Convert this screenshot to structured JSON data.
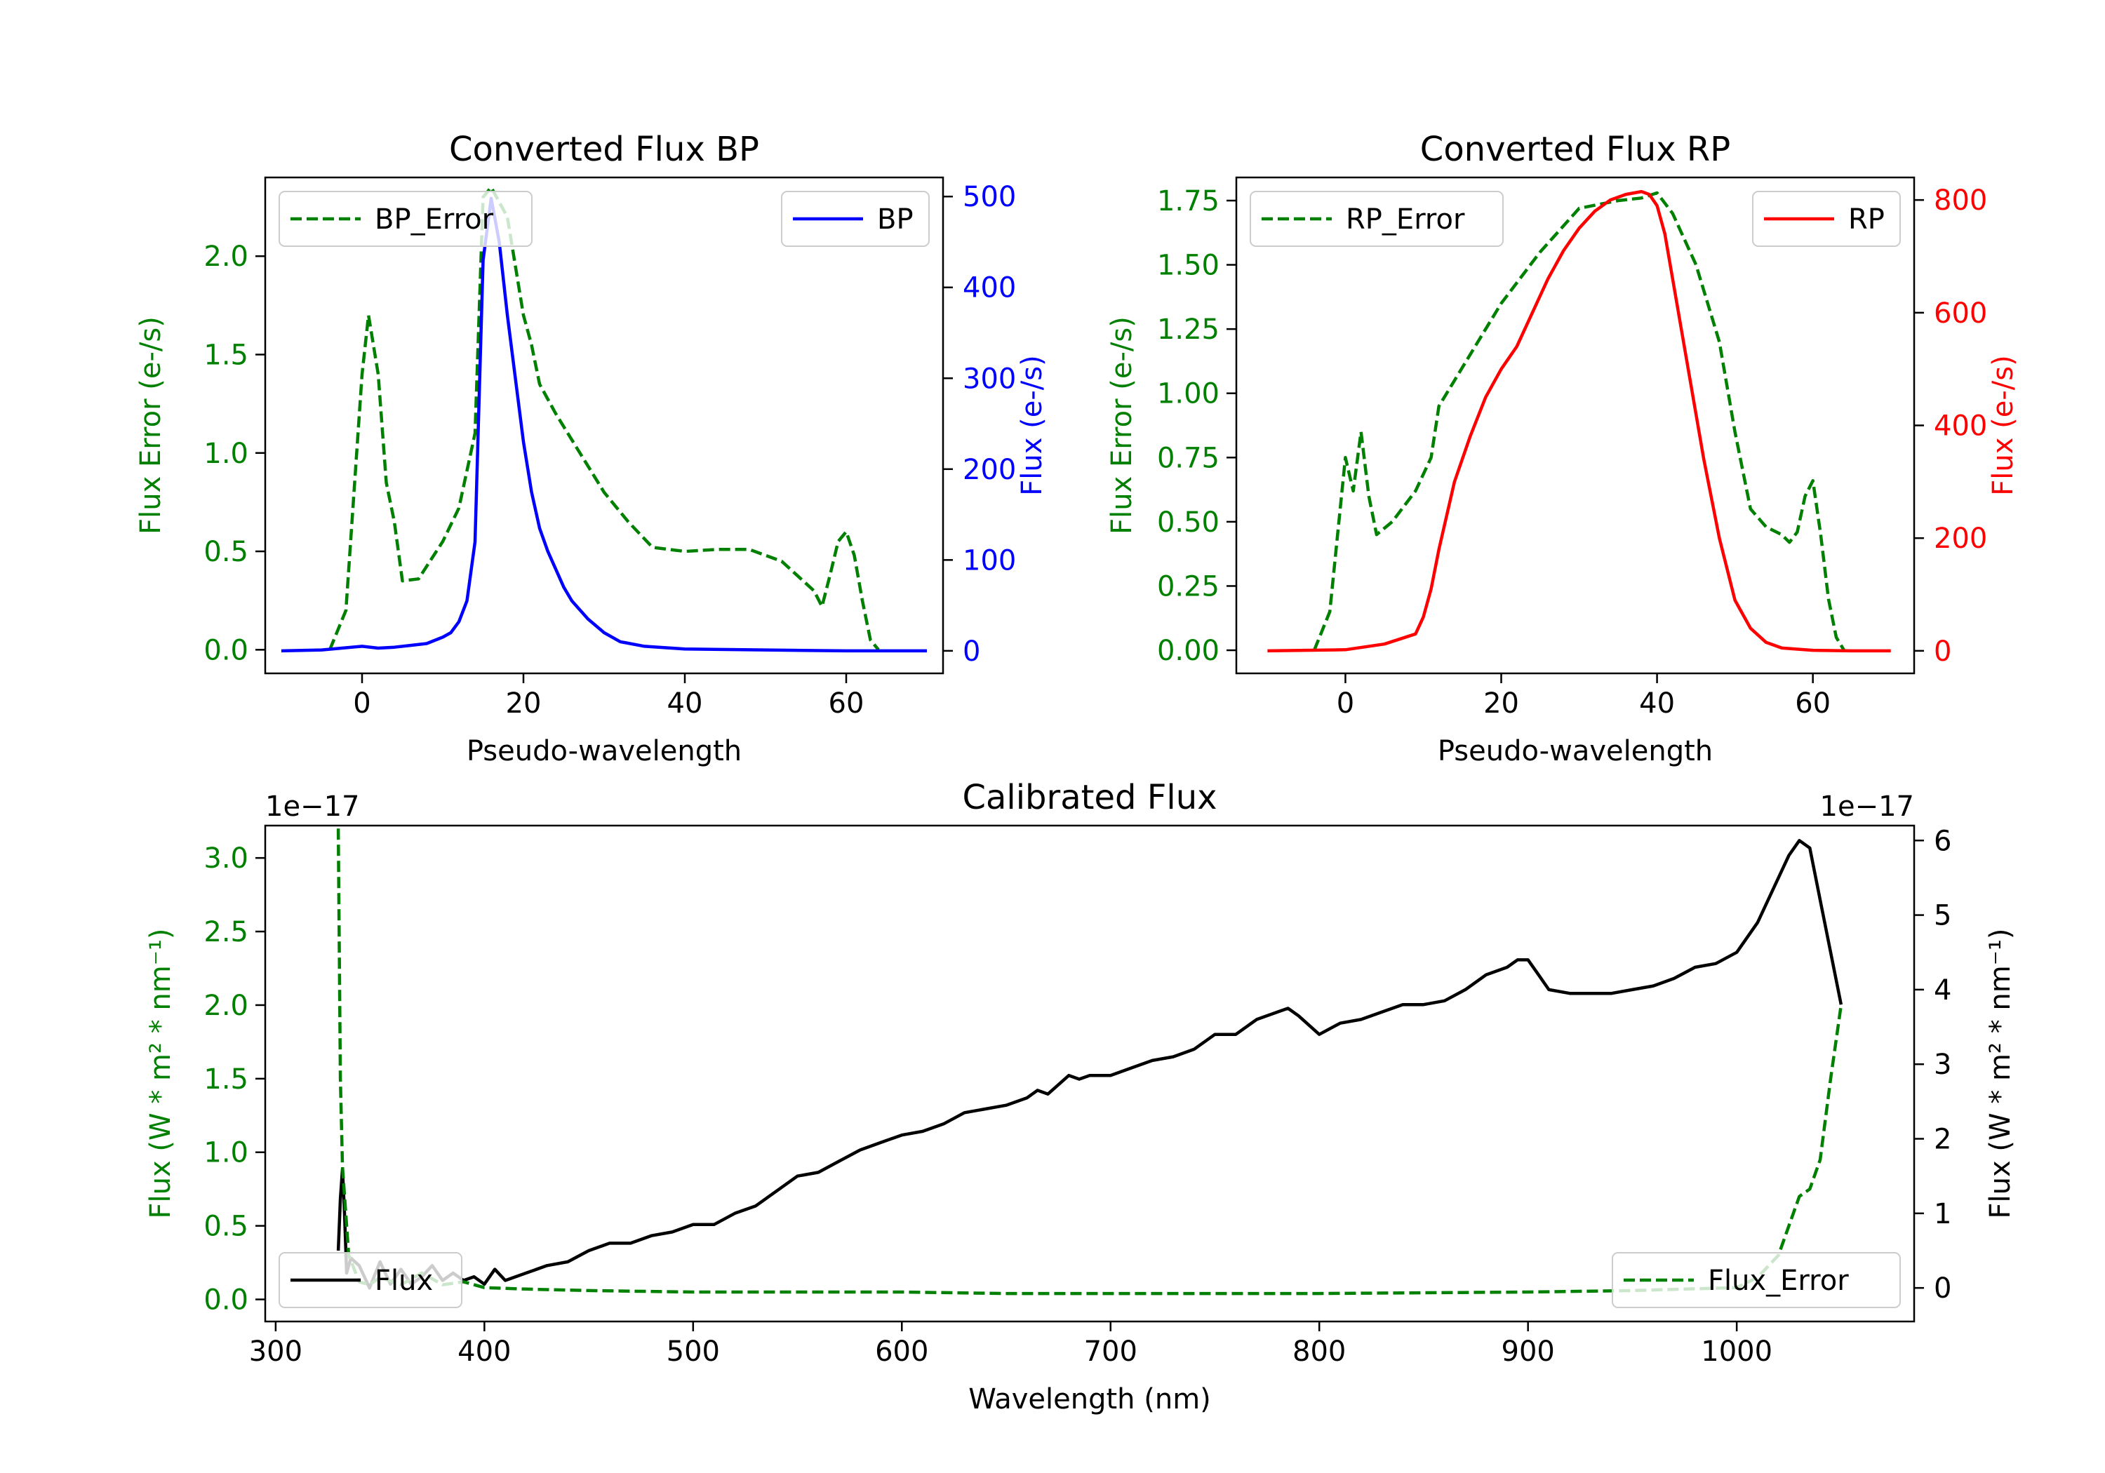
{
  "colors": {
    "error": "#008000",
    "bp": "#0000ff",
    "rp": "#ff0000",
    "flux": "#000000",
    "axis": "#000000"
  },
  "chart_data": [
    {
      "id": "bp",
      "type": "line",
      "title": "Converted Flux BP",
      "xlabel": "Pseudo-wavelength",
      "xlim": [
        -12,
        72
      ],
      "xticks": [
        "0",
        "20",
        "40",
        "60"
      ],
      "left_axis": {
        "label": "Flux Error (e-/s)",
        "ylim": [
          -0.12,
          2.4
        ],
        "ticks": [
          "0.0",
          "0.5",
          "1.0",
          "1.5",
          "2.0"
        ]
      },
      "right_axis": {
        "label": "Flux (e-/s)",
        "ylim": [
          -24.8,
          521
        ],
        "ticks": [
          "0",
          "100",
          "200",
          "300",
          "400",
          "500"
        ]
      },
      "series": [
        {
          "name": "BP_Error",
          "axis": "left",
          "style": "dashed",
          "x": [
            -4,
            -2,
            0,
            0.8,
            2,
            3,
            4,
            5,
            7,
            10,
            12,
            14,
            15,
            16,
            18,
            20,
            21,
            22,
            24,
            27,
            30,
            33,
            36,
            40,
            44,
            48,
            52,
            56,
            57,
            58,
            59,
            60,
            61,
            62,
            63,
            64
          ],
          "y": [
            0.0,
            0.2,
            1.4,
            1.7,
            1.4,
            0.85,
            0.65,
            0.35,
            0.36,
            0.55,
            0.72,
            1.1,
            2.3,
            2.35,
            2.2,
            1.7,
            1.55,
            1.35,
            1.2,
            1.0,
            0.8,
            0.65,
            0.52,
            0.5,
            0.51,
            0.51,
            0.45,
            0.3,
            0.22,
            0.38,
            0.55,
            0.6,
            0.48,
            0.25,
            0.05,
            0.0
          ]
        },
        {
          "name": "BP",
          "axis": "right",
          "style": "solid",
          "x": [
            -10,
            -5,
            0,
            2,
            4,
            6,
            8,
            10,
            11,
            12,
            13,
            14,
            15,
            16,
            17,
            18,
            19,
            20,
            21,
            22,
            23,
            24,
            25,
            26,
            28,
            30,
            32,
            35,
            40,
            50,
            60,
            70
          ],
          "y": [
            0,
            1,
            5,
            3,
            4,
            6,
            8,
            15,
            20,
            32,
            55,
            120,
            430,
            498,
            450,
            370,
            300,
            230,
            175,
            135,
            110,
            90,
            70,
            55,
            35,
            20,
            10,
            5,
            2,
            1,
            0,
            0
          ]
        }
      ],
      "legend": [
        {
          "label": "BP_Error",
          "location": "top-left"
        },
        {
          "label": "BP",
          "location": "top-right"
        }
      ]
    },
    {
      "id": "rp",
      "type": "line",
      "title": "Converted Flux RP",
      "xlabel": "Pseudo-wavelength",
      "xlim": [
        -14,
        73
      ],
      "xticks": [
        "0",
        "20",
        "40",
        "60"
      ],
      "left_axis": {
        "label": "Flux Error (e-/s)",
        "ylim": [
          -0.09,
          1.84
        ],
        "ticks": [
          "0.00",
          "0.25",
          "0.50",
          "0.75",
          "1.00",
          "1.25",
          "1.50",
          "1.75"
        ]
      },
      "right_axis": {
        "label": "Flux (e-/s)",
        "ylim": [
          -40,
          840
        ],
        "ticks": [
          "0",
          "200",
          "400",
          "600",
          "800"
        ]
      },
      "series": [
        {
          "name": "RP_Error",
          "axis": "left",
          "style": "dashed",
          "x": [
            -4,
            -2,
            0,
            1,
            2,
            3,
            4,
            6,
            9,
            11,
            12,
            14,
            16,
            20,
            25,
            30,
            35,
            38,
            40,
            42,
            45,
            48,
            50,
            52,
            54,
            56,
            57,
            58,
            59,
            60,
            61,
            62,
            63,
            64
          ],
          "y": [
            0.0,
            0.15,
            0.75,
            0.62,
            0.85,
            0.6,
            0.45,
            0.5,
            0.62,
            0.75,
            0.95,
            1.05,
            1.15,
            1.35,
            1.55,
            1.72,
            1.75,
            1.76,
            1.78,
            1.7,
            1.5,
            1.2,
            0.85,
            0.55,
            0.48,
            0.45,
            0.42,
            0.46,
            0.6,
            0.66,
            0.45,
            0.2,
            0.05,
            0.0
          ]
        },
        {
          "name": "RP",
          "axis": "right",
          "style": "solid",
          "x": [
            -10,
            0,
            5,
            9,
            10,
            11,
            12,
            13,
            14,
            16,
            18,
            20,
            22,
            24,
            26,
            28,
            30,
            32,
            34,
            36,
            38,
            39,
            40,
            41,
            42,
            44,
            46,
            48,
            50,
            52,
            54,
            56,
            60,
            65,
            70
          ],
          "y": [
            0,
            2,
            12,
            30,
            60,
            110,
            180,
            240,
            300,
            380,
            450,
            500,
            540,
            600,
            660,
            710,
            750,
            780,
            800,
            810,
            815,
            810,
            790,
            740,
            660,
            500,
            340,
            200,
            90,
            40,
            15,
            5,
            1,
            0,
            0
          ]
        }
      ],
      "legend": [
        {
          "label": "RP_Error",
          "location": "top-left"
        },
        {
          "label": "RP",
          "location": "top-right"
        }
      ]
    },
    {
      "id": "cal",
      "type": "line",
      "title": "Calibrated Flux",
      "xlabel": "Wavelength (nm)",
      "xlim": [
        295,
        1085
      ],
      "xticks": [
        "300",
        "400",
        "500",
        "600",
        "700",
        "800",
        "900",
        "1000"
      ],
      "left_axis": {
        "label": "Flux (W * m² * nm⁻¹)",
        "offset_text": "1e−17",
        "ylim": [
          -0.15,
          3.22
        ],
        "ticks": [
          "0.0",
          "0.5",
          "1.0",
          "1.5",
          "2.0",
          "2.5",
          "3.0"
        ]
      },
      "right_axis": {
        "label": "Flux (W * m² * nm⁻¹)",
        "offset_text": "1e−17",
        "ylim": [
          -0.45,
          6.2
        ],
        "ticks": [
          "0",
          "1",
          "2",
          "3",
          "4",
          "5",
          "6"
        ]
      },
      "series": [
        {
          "name": "Flux",
          "axis": "right",
          "style": "solid",
          "x": [
            330,
            331,
            332,
            333,
            334,
            336,
            340,
            345,
            350,
            355,
            360,
            365,
            370,
            375,
            380,
            385,
            390,
            395,
            400,
            405,
            410,
            420,
            430,
            440,
            450,
            460,
            470,
            480,
            490,
            500,
            510,
            520,
            530,
            540,
            550,
            560,
            570,
            580,
            590,
            600,
            610,
            620,
            630,
            640,
            650,
            660,
            665,
            670,
            680,
            685,
            690,
            700,
            710,
            720,
            730,
            740,
            750,
            760,
            770,
            780,
            785,
            790,
            800,
            810,
            820,
            830,
            840,
            850,
            860,
            870,
            880,
            890,
            895,
            900,
            905,
            910,
            920,
            930,
            940,
            950,
            960,
            970,
            980,
            990,
            1000,
            1010,
            1020,
            1025,
            1030,
            1035,
            1040,
            1050
          ],
          "y": [
            0.5,
            1.2,
            1.6,
            1.0,
            0.2,
            0.4,
            0.3,
            0.0,
            0.35,
            0.05,
            0.25,
            0.05,
            0.15,
            0.3,
            0.1,
            0.2,
            0.1,
            0.15,
            0.05,
            0.25,
            0.1,
            0.2,
            0.3,
            0.35,
            0.5,
            0.6,
            0.6,
            0.7,
            0.75,
            0.85,
            0.85,
            1.0,
            1.1,
            1.3,
            1.5,
            1.55,
            1.7,
            1.85,
            1.95,
            2.05,
            2.1,
            2.2,
            2.35,
            2.4,
            2.45,
            2.55,
            2.65,
            2.6,
            2.85,
            2.8,
            2.85,
            2.85,
            2.95,
            3.05,
            3.1,
            3.2,
            3.4,
            3.4,
            3.6,
            3.7,
            3.75,
            3.65,
            3.4,
            3.55,
            3.6,
            3.7,
            3.8,
            3.8,
            3.85,
            4.0,
            4.2,
            4.3,
            4.4,
            4.4,
            4.2,
            4.0,
            3.95,
            3.95,
            3.95,
            4.0,
            4.05,
            4.15,
            4.3,
            4.35,
            4.5,
            4.9,
            5.5,
            5.8,
            6.0,
            5.9,
            5.2,
            3.8
          ]
        },
        {
          "name": "Flux_Error",
          "axis": "left",
          "style": "dashed",
          "x": [
            330,
            331,
            332,
            335,
            340,
            345,
            350,
            360,
            370,
            380,
            390,
            400,
            420,
            450,
            500,
            600,
            650,
            700,
            800,
            900,
            950,
            1000,
            1010,
            1020,
            1025,
            1030,
            1035,
            1040,
            1045,
            1050
          ],
          "y": [
            3.2,
            1.5,
            0.9,
            0.3,
            0.12,
            0.1,
            0.15,
            0.1,
            0.18,
            0.1,
            0.12,
            0.08,
            0.07,
            0.06,
            0.05,
            0.05,
            0.04,
            0.04,
            0.04,
            0.05,
            0.06,
            0.08,
            0.15,
            0.3,
            0.5,
            0.7,
            0.75,
            0.95,
            1.5,
            2.0
          ]
        }
      ],
      "legend": [
        {
          "label": "Flux",
          "location": "bottom-left"
        },
        {
          "label": "Flux_Error",
          "location": "bottom-right"
        }
      ]
    }
  ]
}
